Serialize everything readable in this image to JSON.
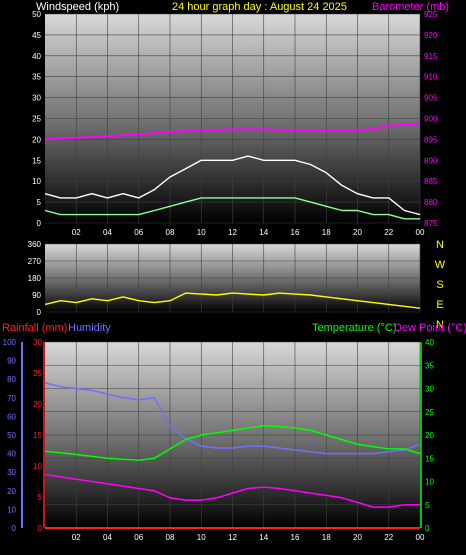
{
  "colors": {
    "background": "#000000",
    "wind_axis": "#ffffff",
    "barometer": "#ff00ff",
    "title": "#ffff00",
    "wind_dir": "#ffff00",
    "rain": "#ff2020",
    "humidity": "#7070ff",
    "temperature": "#00ff00",
    "dewpoint": "#ff00ff",
    "gust": "#ffffff",
    "avg_wind": "#90ff90"
  },
  "chart_data": [
    {
      "type": "line",
      "panel": "wind-barometer",
      "title": "24 hour graph day : August 24 2025",
      "left_axis_label": "Windspeed (kph)",
      "right_axis_label": "Barometer (mb)",
      "left_ylim": [
        0,
        50
      ],
      "left_ticks": [
        "0",
        "5",
        "10",
        "15",
        "20",
        "25",
        "30",
        "35",
        "40",
        "45",
        "50"
      ],
      "right_ylim": [
        875,
        925
      ],
      "right_ticks": [
        "875",
        "880",
        "885",
        "890",
        "895",
        "900",
        "905",
        "910",
        "915",
        "920",
        "925"
      ],
      "x_ticks": [
        "02",
        "04",
        "06",
        "08",
        "10",
        "12",
        "14",
        "16",
        "18",
        "20",
        "22",
        "00"
      ],
      "x_hours": [
        0,
        1,
        2,
        3,
        4,
        5,
        6,
        7,
        8,
        9,
        10,
        11,
        12,
        13,
        14,
        15,
        16,
        17,
        18,
        19,
        20,
        21,
        22,
        23,
        24
      ],
      "series": [
        {
          "key": "barometer",
          "axis": "right",
          "values": [
            895,
            895.2,
            895.4,
            895.6,
            895.8,
            896,
            896.2,
            896.5,
            896.8,
            897,
            897.2,
            897.3,
            897.4,
            897.4,
            897.4,
            897.3,
            897.2,
            897.1,
            897,
            897,
            897.2,
            897.6,
            898.2,
            898.6,
            898.8
          ]
        },
        {
          "key": "gust",
          "axis": "left",
          "values": [
            7,
            6,
            6,
            7,
            6,
            7,
            6,
            8,
            11,
            13,
            15,
            15,
            15,
            16,
            15,
            15,
            15,
            14,
            12,
            9,
            7,
            6,
            6,
            3,
            2
          ]
        },
        {
          "key": "avg_wind",
          "axis": "left",
          "values": [
            3,
            2,
            2,
            2,
            2,
            2,
            2,
            3,
            4,
            5,
            6,
            6,
            6,
            6,
            6,
            6,
            6,
            5,
            4,
            3,
            3,
            2,
            2,
            1,
            1
          ]
        }
      ]
    },
    {
      "type": "line",
      "panel": "wind-direction",
      "left_ylim": [
        0,
        360
      ],
      "left_ticks": [
        "0",
        "90",
        "180",
        "270",
        "360"
      ],
      "compass_labels": [
        "N",
        "W",
        "S",
        "E",
        "N"
      ],
      "x_hours": [
        0,
        1,
        2,
        3,
        4,
        5,
        6,
        7,
        8,
        9,
        10,
        11,
        12,
        13,
        14,
        15,
        16,
        17,
        18,
        19,
        20,
        21,
        22,
        23,
        24
      ],
      "series": [
        {
          "key": "wind_dir",
          "values": [
            40,
            60,
            50,
            70,
            60,
            80,
            60,
            50,
            60,
            100,
            95,
            90,
            100,
            95,
            90,
            100,
            95,
            90,
            80,
            70,
            60,
            50,
            40,
            30,
            20
          ]
        }
      ]
    },
    {
      "type": "line",
      "panel": "rain-humidity-temp",
      "rain_axis_label": "Rainfall (mm)",
      "humidity_axis_label": "Humidity",
      "temp_axis_label": "Temperature (°C)",
      "dew_axis_label": "Dew Point (°C)",
      "humidity_ylim": [
        0,
        100
      ],
      "humidity_ticks": [
        "0",
        "10",
        "20",
        "30",
        "40",
        "50",
        "60",
        "70",
        "80",
        "90",
        "100"
      ],
      "rain_ylim": [
        0,
        30
      ],
      "rain_ticks": [
        "0",
        "5",
        "10",
        "15",
        "20",
        "25",
        "30"
      ],
      "temp_ylim": [
        0,
        40
      ],
      "temp_ticks": [
        "0",
        "5",
        "10",
        "15",
        "20",
        "25",
        "30",
        "35",
        "40"
      ],
      "x_ticks": [
        "02",
        "04",
        "06",
        "08",
        "10",
        "12",
        "14",
        "16",
        "18",
        "20",
        "22",
        "00"
      ],
      "x_hours": [
        0,
        1,
        2,
        3,
        4,
        5,
        6,
        7,
        8,
        9,
        10,
        11,
        12,
        13,
        14,
        15,
        16,
        17,
        18,
        19,
        20,
        21,
        22,
        23,
        24
      ],
      "series": [
        {
          "key": "humidity",
          "axis": "humidity",
          "values": [
            78,
            76,
            75,
            74,
            72,
            70,
            69,
            70,
            55,
            48,
            44,
            43,
            43,
            44,
            44,
            43,
            42,
            41,
            40,
            40,
            40,
            40,
            41,
            42,
            45
          ]
        },
        {
          "key": "temperature",
          "axis": "temp",
          "values": [
            16.5,
            16.2,
            15.8,
            15.4,
            15,
            14.8,
            14.6,
            15,
            17,
            19,
            20,
            20.5,
            21,
            21.5,
            22,
            21.8,
            21.5,
            21,
            20,
            19,
            18,
            17.5,
            17,
            17,
            16
          ]
        },
        {
          "key": "dewpoint",
          "axis": "temp",
          "values": [
            11.5,
            11,
            10.5,
            10,
            9.5,
            9,
            8.5,
            8,
            6.5,
            6,
            6,
            6.5,
            7.5,
            8.5,
            8.8,
            8.5,
            8,
            7.5,
            7,
            6.5,
            5.5,
            4.5,
            4.5,
            5,
            5
          ]
        },
        {
          "key": "rain",
          "axis": "rain",
          "values": [
            0,
            0,
            0,
            0,
            0,
            0,
            0,
            0,
            0,
            0,
            0,
            0,
            0,
            0,
            0,
            0,
            0,
            0,
            0,
            0,
            0,
            0,
            0,
            0,
            0
          ]
        }
      ]
    }
  ]
}
